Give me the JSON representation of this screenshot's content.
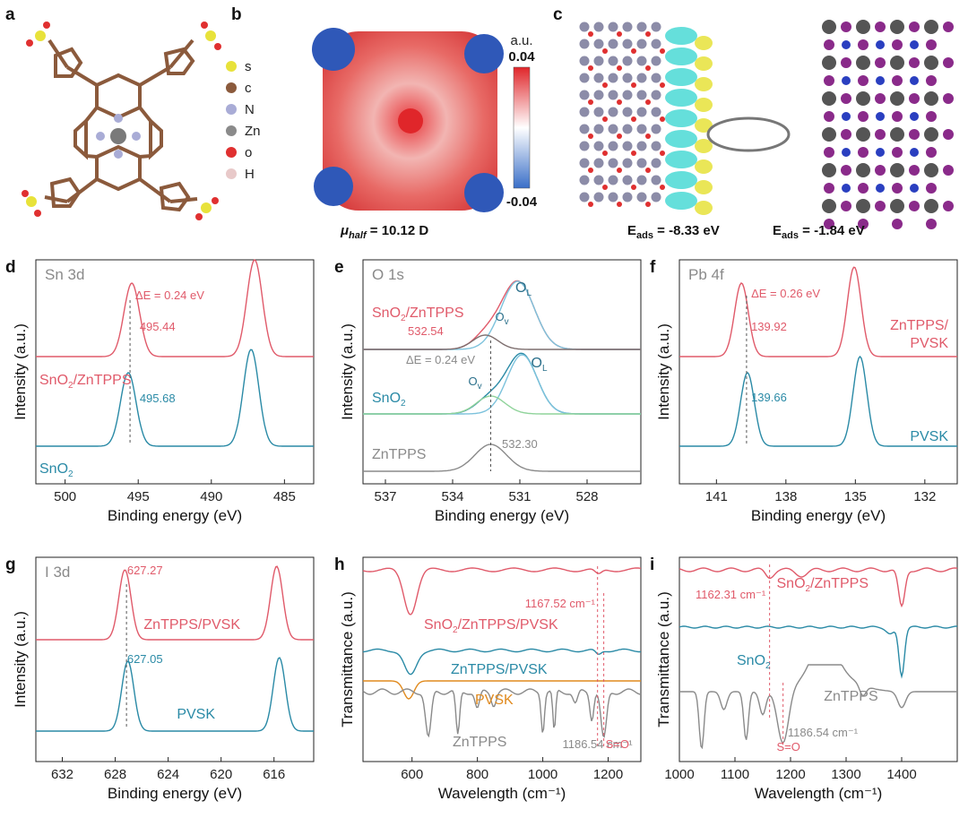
{
  "colors": {
    "red": "#e05a6a",
    "blue": "#2a8aa6",
    "gray": "#8a8a8a",
    "orange": "#e08a1e",
    "lightblue": "#7cc2dc",
    "lightgreen": "#8fd39a"
  },
  "top": {
    "a": {
      "label": "a",
      "legend": [
        {
          "sym": "s",
          "color": "#e8e23a"
        },
        {
          "sym": "c",
          "color": "#8b5a3c"
        },
        {
          "sym": "N",
          "color": "#a9acd6"
        },
        {
          "sym": "Zn",
          "color": "#8a8a8a"
        },
        {
          "sym": "o",
          "color": "#e03030"
        },
        {
          "sym": "H",
          "color": "#e8c9c9"
        }
      ]
    },
    "b": {
      "label": "b",
      "unit": "a.u.",
      "cmax": "0.04",
      "cmin": "-0.04",
      "mu_prefix": "μ",
      "mu_sub": "half",
      "mu_value": " = 10.12 D"
    },
    "c": {
      "label": "c",
      "e1_prefix": "E",
      "e1_sub": "ads",
      "e1_value": " = -8.33 eV",
      "e2_prefix": "E",
      "e2_sub": "ads",
      "e2_value": " = -1.84 eV"
    }
  },
  "chart_data": [
    {
      "panel": "d",
      "type": "line",
      "title": "Sn 3d",
      "xlabel": "Binding energy (eV)",
      "ylabel": "Intensity (a.u.)",
      "xlim": [
        502,
        483
      ],
      "xticks": [
        500,
        495,
        490,
        485
      ],
      "series": [
        {
          "name": "SnO2/ZnTPPS",
          "peaks": [
            495.44,
            487.04
          ]
        },
        {
          "name": "SnO2",
          "peaks": [
            495.68,
            487.28
          ]
        }
      ],
      "annotations": {
        "delta": "ΔE = 0.24 eV",
        "peak_red": "495.44",
        "peak_blue": "495.68"
      }
    },
    {
      "panel": "e",
      "type": "line",
      "title": "O 1s",
      "xlabel": "Binding energy (eV)",
      "ylabel": "Intensity (a.u.)",
      "xlim": [
        538,
        525.6
      ],
      "xticks": [
        537,
        534,
        531,
        528
      ],
      "series": [
        {
          "name": "SnO2/ZnTPPS",
          "peaks": [
            531.1,
            532.54
          ]
        },
        {
          "name": "SnO2",
          "peaks": [
            530.9,
            532.3
          ]
        },
        {
          "name": "ZnTPPS",
          "peaks": [
            532.3
          ]
        }
      ],
      "annotations": {
        "delta": "ΔE = 0.24 eV",
        "peak_red": "532.54",
        "peak_gray": "532.30",
        "OL": "O",
        "OL_sub": "L",
        "Ov": "O",
        "Ov_sub": "v"
      }
    },
    {
      "panel": "f",
      "type": "line",
      "title": "Pb 4f",
      "xlabel": "Binding energy (eV)",
      "ylabel": "Intensity (a.u.)",
      "xlim": [
        142.6,
        130.6
      ],
      "xticks": [
        141,
        138,
        135,
        132
      ],
      "series": [
        {
          "name": "ZnTPPS/PVSK",
          "peaks": [
            139.92,
            135.05
          ]
        },
        {
          "name": "PVSK",
          "peaks": [
            139.66,
            134.8
          ]
        }
      ],
      "annotations": {
        "delta": "ΔE = 0.26 eV",
        "peak_red": "139.92",
        "peak_blue": "139.66"
      }
    },
    {
      "panel": "g",
      "type": "line",
      "title": "I 3d",
      "xlabel": "Binding energy (eV)",
      "ylabel": "Intensity (a.u.)",
      "xlim": [
        634,
        613
      ],
      "xticks": [
        632,
        628,
        624,
        620,
        616
      ],
      "series": [
        {
          "name": "ZnTPPS/PVSK",
          "peaks": [
            627.27,
            615.8
          ]
        },
        {
          "name": "PVSK",
          "peaks": [
            627.05,
            615.6
          ]
        }
      ],
      "annotations": {
        "peak_red": "627.27",
        "peak_blue": "627.05"
      }
    },
    {
      "panel": "h",
      "type": "line",
      "xlabel": "Wavelength (cm⁻¹)",
      "ylabel": "Transmittance (a.u.)",
      "xlim": [
        450,
        1300
      ],
      "xticks": [
        600,
        800,
        1000,
        1200
      ],
      "series": [
        {
          "name": "SnO2/ZnTPPS/PVSK",
          "dips": [
            590,
            1167.52
          ]
        },
        {
          "name": "ZnTPPS/PVSK",
          "dips": [
            590
          ]
        },
        {
          "name": "PVSK",
          "dips": [
            590
          ]
        },
        {
          "name": "ZnTPPS",
          "dips": [
            650,
            740,
            800,
            1000,
            1035,
            1100,
            1186.54
          ]
        }
      ],
      "annotations": {
        "v1": "1167.52 cm⁻¹",
        "v2": "1186.54 cm⁻¹",
        "so": "S=O"
      }
    },
    {
      "panel": "i",
      "type": "line",
      "xlabel": "Wavelength (cm⁻¹)",
      "ylabel": "Transmittance (a.u.)",
      "xlim": [
        1000,
        1500
      ],
      "xticks": [
        1000,
        1100,
        1200,
        1300,
        1400
      ],
      "series": [
        {
          "name": "SnO2/ZnTPPS",
          "dips": [
            1162.31,
            1400
          ]
        },
        {
          "name": "SnO2",
          "dips": [
            1400
          ]
        },
        {
          "name": "ZnTPPS",
          "dips": [
            1040,
            1120,
            1186.54,
            1330
          ]
        }
      ],
      "annotations": {
        "v1": "1162.31 cm⁻¹",
        "v2": "1186.54 cm⁻¹",
        "so": "S=O"
      }
    }
  ]
}
